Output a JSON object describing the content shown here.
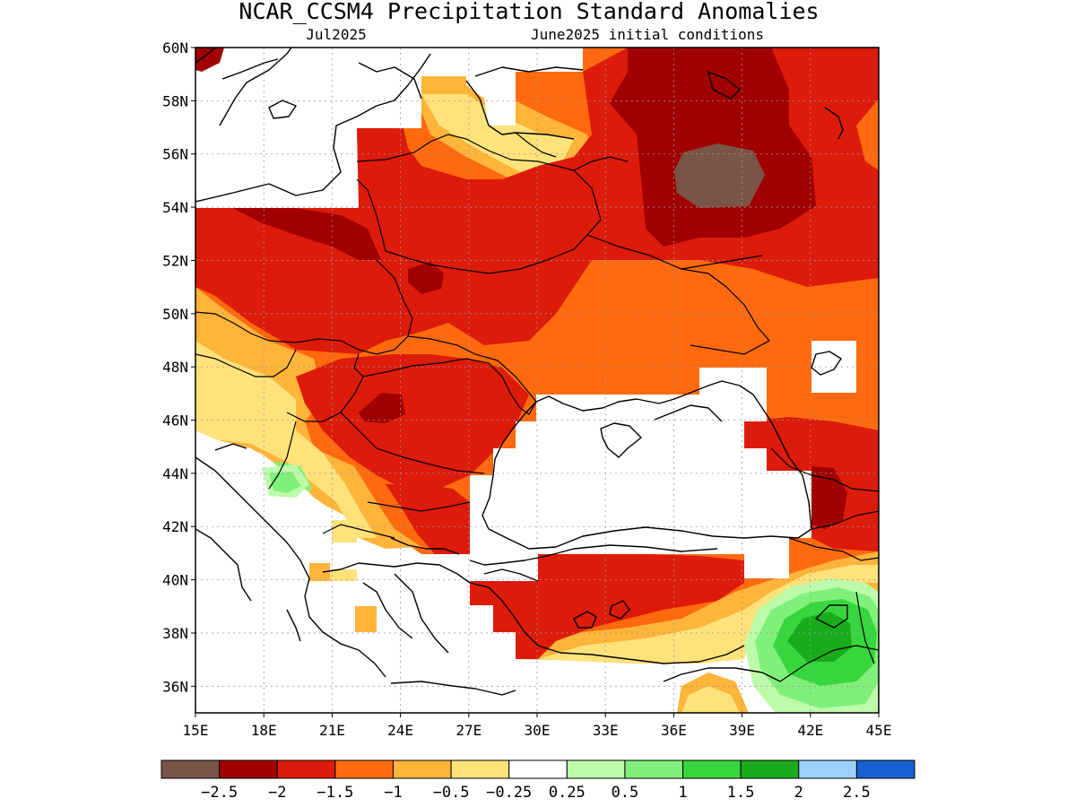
{
  "title": "NCAR_CCSM4 Precipitation Standard Anomalies",
  "subtitle_left": "Jul2025",
  "subtitle_right": "June2025 initial conditions",
  "map": {
    "lon_range": [
      15,
      45
    ],
    "lat_range": [
      35,
      60
    ],
    "lat_ticks": [
      "60N",
      "58N",
      "56N",
      "54N",
      "52N",
      "50N",
      "48N",
      "46N",
      "44N",
      "42N",
      "40N",
      "38N",
      "36N"
    ],
    "lon_ticks": [
      "15E",
      "18E",
      "21E",
      "24E",
      "27E",
      "30E",
      "33E",
      "36E",
      "39E",
      "42E",
      "45E"
    ],
    "grid": "dotted"
  },
  "colorbar": {
    "colors": [
      "#7a5547",
      "#a00000",
      "#dd1b0a",
      "#ff6a0e",
      "#ffb43a",
      "#ffe27a",
      "#ffffff",
      "#bdfbaa",
      "#7ff07a",
      "#38d63e",
      "#18ac1c",
      "#9ad2fa",
      "#1760d4"
    ],
    "labels": [
      "−2.5",
      "−2",
      "−1.5",
      "−1",
      "−0.5",
      "−0.25",
      "0.25",
      "0.5",
      "1",
      "1.5",
      "2",
      "2.5"
    ]
  },
  "colors": {
    "brown": "#7a5547",
    "dark_red": "#a00000",
    "red": "#dd1b0a",
    "orange": "#ff6a0e",
    "light_orange": "#ffb43a",
    "yellow": "#ffe27a",
    "light_green": "#bdfbaa",
    "green": "#7ff07a",
    "mid_green": "#38d63e",
    "dark_green": "#18ac1c"
  }
}
